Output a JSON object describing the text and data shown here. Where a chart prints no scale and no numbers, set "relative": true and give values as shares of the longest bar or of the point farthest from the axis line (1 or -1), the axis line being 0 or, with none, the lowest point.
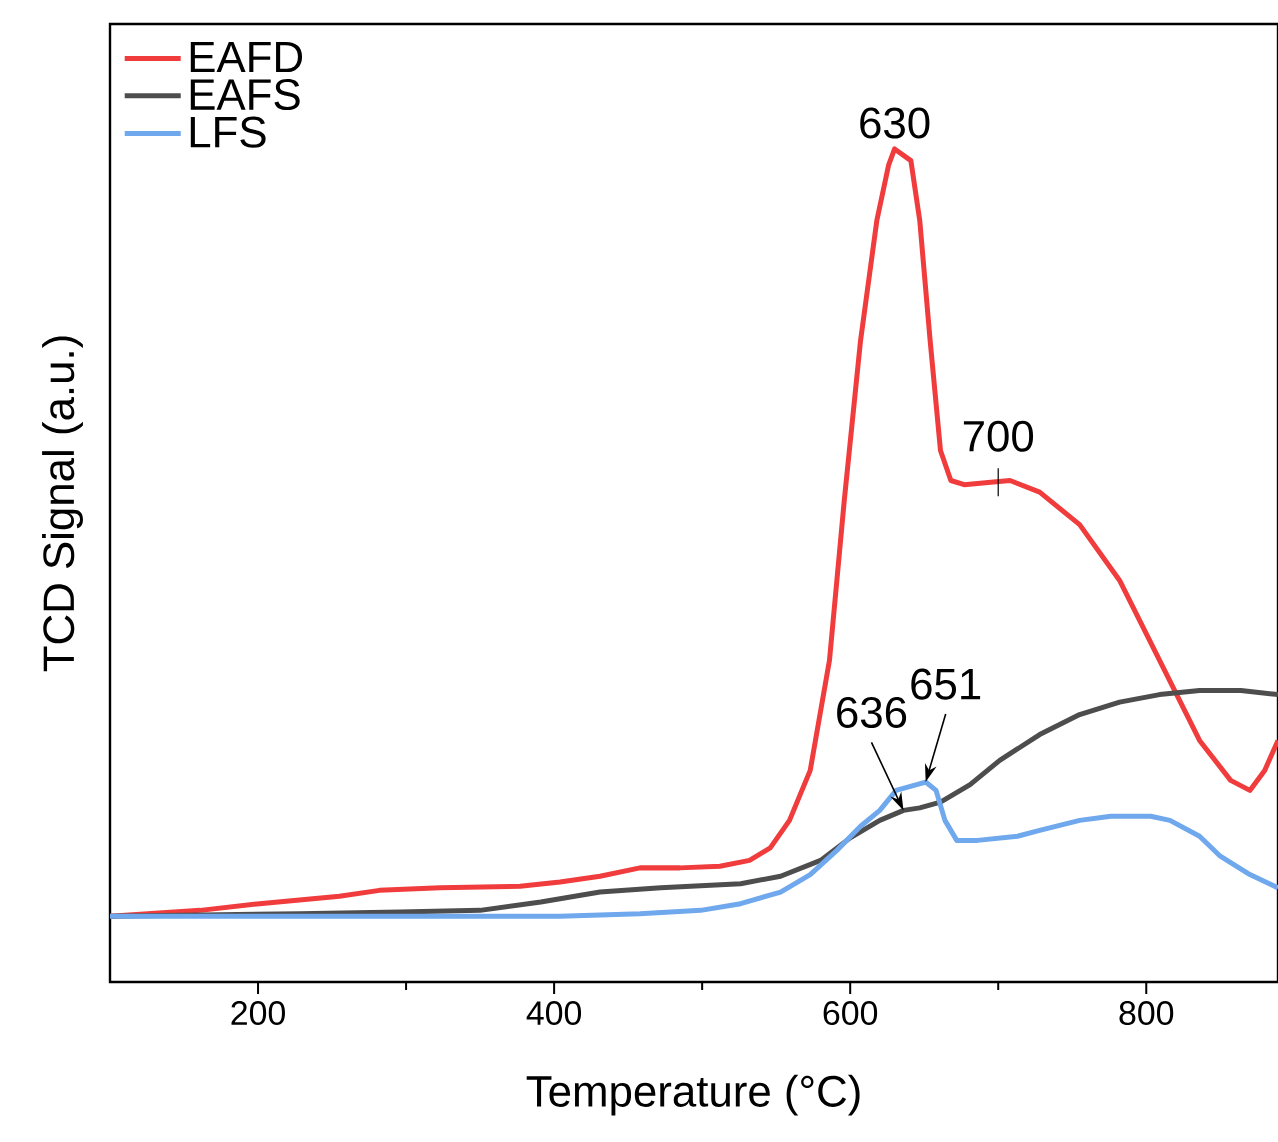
{
  "chart_data": {
    "type": "line",
    "xlabel": "Temperature (°C)",
    "ylabel": "TCD Signal (a.u.)",
    "relative": true,
    "legend": "top left",
    "xlim": [
      100,
      889
    ],
    "xticks": [
      200,
      400,
      600,
      800
    ],
    "series": [
      {
        "name": "EAFD",
        "color": "#f03c3c",
        "x": [
          100,
          161,
          201,
          255,
          282,
          323,
          377,
          404,
          431,
          458,
          485,
          512,
          532,
          546,
          559,
          573,
          586,
          596,
          607,
          618,
          626,
          630,
          641,
          647,
          654,
          661,
          668,
          677,
          695,
          708,
          728,
          755,
          782,
          809,
          836,
          857,
          870,
          880,
          889
        ],
        "values": [
          0.079,
          0.086,
          0.094,
          0.103,
          0.11,
          0.113,
          0.115,
          0.12,
          0.127,
          0.137,
          0.137,
          0.139,
          0.146,
          0.161,
          0.194,
          0.254,
          0.386,
          0.578,
          0.77,
          0.914,
          0.981,
          1.0,
          0.986,
          0.914,
          0.77,
          0.638,
          0.602,
          0.597,
          0.6,
          0.602,
          0.588,
          0.549,
          0.482,
          0.386,
          0.29,
          0.242,
          0.23,
          0.254,
          0.29
        ]
      },
      {
        "name": "EAFS",
        "color": "#4d4d4d",
        "x": [
          100,
          228,
          296,
          350,
          391,
          431,
          472,
          526,
          553,
          580,
          600,
          620,
          636,
          647,
          661,
          681,
          701,
          728,
          755,
          782,
          809,
          836,
          864,
          889
        ],
        "values": [
          0.079,
          0.082,
          0.084,
          0.086,
          0.096,
          0.108,
          0.113,
          0.118,
          0.127,
          0.146,
          0.173,
          0.194,
          0.206,
          0.209,
          0.216,
          0.237,
          0.266,
          0.297,
          0.321,
          0.336,
          0.345,
          0.35,
          0.35,
          0.345
        ]
      },
      {
        "name": "LFS",
        "color": "#6fa8ec",
        "x": [
          100,
          296,
          404,
          458,
          499,
          526,
          553,
          573,
          591,
          607,
          620,
          631,
          651,
          658,
          664,
          672,
          686,
          713,
          728,
          755,
          776,
          803,
          816,
          836,
          850,
          870,
          889
        ],
        "values": [
          0.079,
          0.079,
          0.079,
          0.082,
          0.086,
          0.094,
          0.108,
          0.129,
          0.158,
          0.187,
          0.206,
          0.23,
          0.24,
          0.23,
          0.194,
          0.17,
          0.17,
          0.175,
          0.182,
          0.194,
          0.199,
          0.199,
          0.194,
          0.175,
          0.151,
          0.129,
          0.113
        ]
      }
    ],
    "annotations": [
      {
        "text": "630",
        "x": 630,
        "y": 1.0
      },
      {
        "text": "700",
        "x": 700,
        "y": 0.6
      },
      {
        "text": "636",
        "x": 636,
        "y": 0.206
      },
      {
        "text": "651",
        "x": 651,
        "y": 0.24
      }
    ]
  }
}
